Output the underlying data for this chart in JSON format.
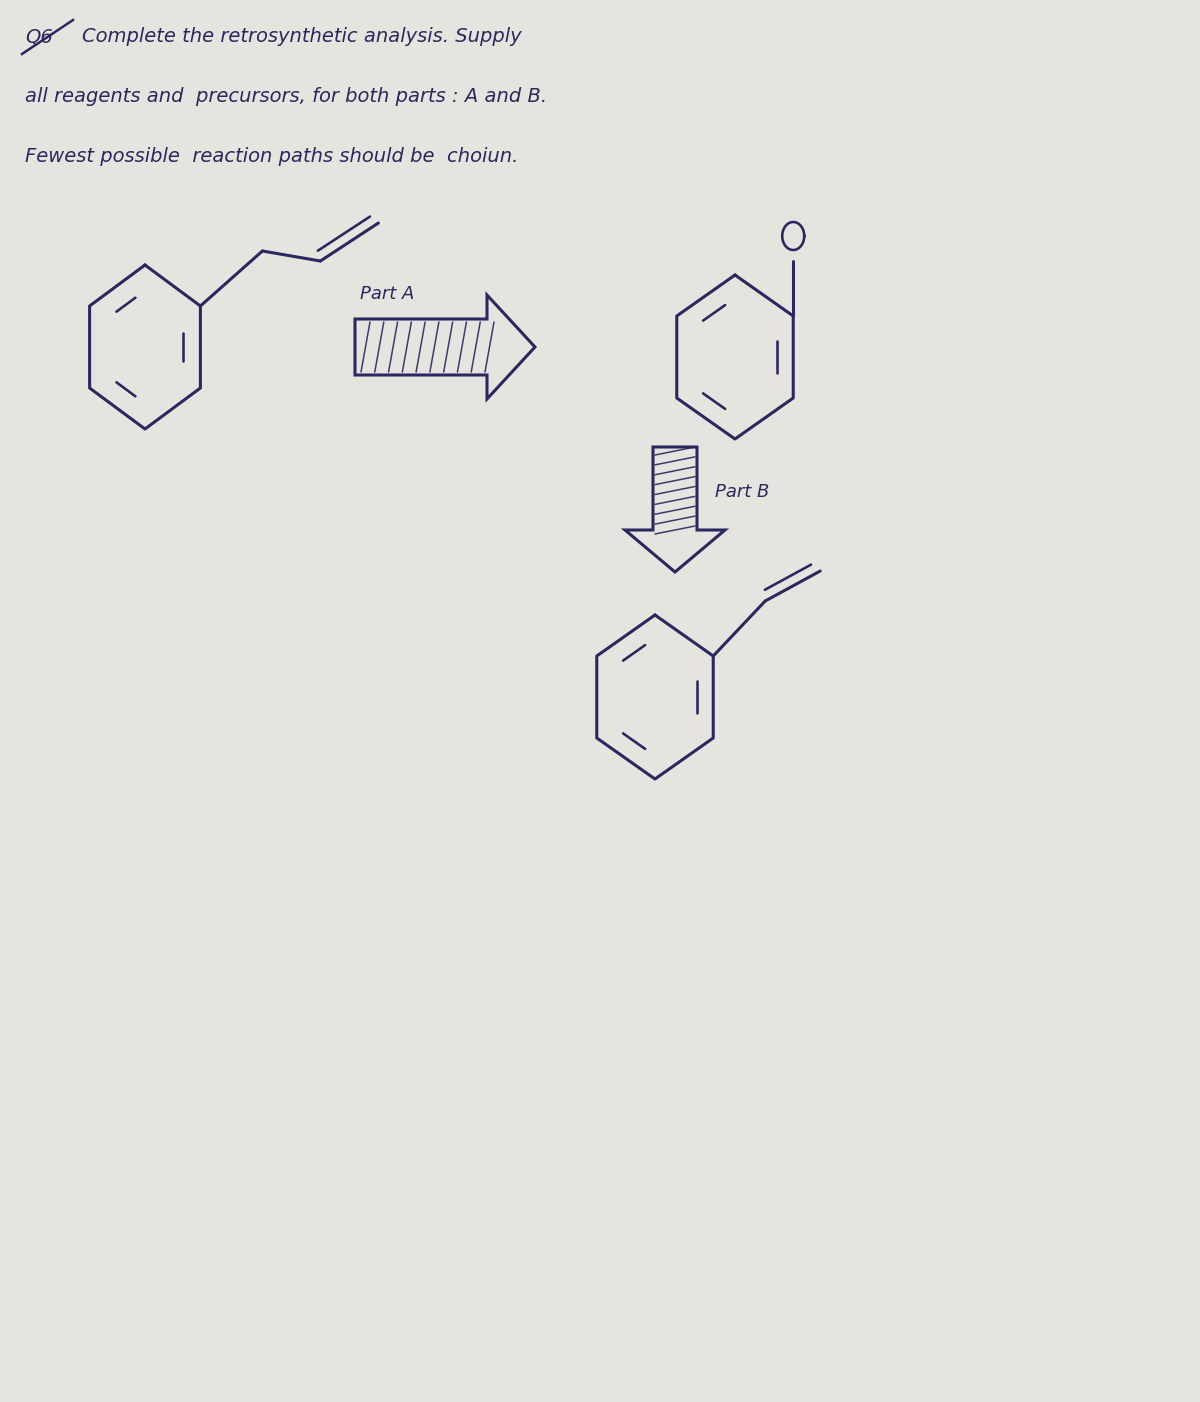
{
  "bg_color": "#e6e4de",
  "ink_color": "#2a2860",
  "fig_width": 12.0,
  "fig_height": 14.02,
  "text_lines": [
    [
      "Q6",
      0.25,
      13.65,
      14,
      "italic"
    ],
    [
      "Complete the retrosynthetic analysis. Supply",
      0.82,
      13.65,
      14,
      "italic"
    ],
    [
      "all reagents and  precursors, for both parts : A and B.",
      0.25,
      13.05,
      14,
      "italic"
    ],
    [
      "Fewest possible  reaction paths should be  choiun.",
      0.25,
      12.45,
      14,
      "italic"
    ]
  ]
}
